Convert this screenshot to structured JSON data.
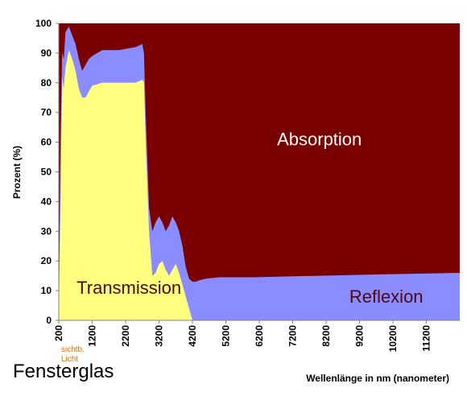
{
  "caption": "Fensterglas",
  "visible_light_label": [
    "sichtb.",
    "Licht"
  ],
  "colors": {
    "absorption": "#7a0000",
    "reflexion": "#8b8cff",
    "transmission": "#ffff80",
    "visible_light_label": "#e07000",
    "region_label_text": "#4a0a12"
  },
  "chart_data": {
    "type": "area",
    "title": "",
    "xlabel": "Wellenlänge in nm (nanometer)",
    "ylabel": "Prozent (%)",
    "xlim": [
      200,
      12200
    ],
    "ylim": [
      0,
      100
    ],
    "x_ticks": [
      200,
      1200,
      2200,
      3200,
      4200,
      5200,
      6200,
      7200,
      8200,
      9200,
      10200,
      11200
    ],
    "y_ticks": [
      0,
      10,
      20,
      30,
      40,
      50,
      60,
      70,
      80,
      90,
      100
    ],
    "region_labels": [
      {
        "series": "Absorption",
        "text": "Absorption",
        "x": 8000,
        "y": 59
      },
      {
        "series": "Reflexion",
        "text": "Reflexion",
        "x": 10000,
        "y": 6
      },
      {
        "series": "Transmission",
        "text": "Transmission",
        "x": 2300,
        "y": 9
      }
    ],
    "x": [
      200,
      250,
      300,
      350,
      400,
      500,
      600,
      700,
      800,
      900,
      1000,
      1100,
      1200,
      1500,
      2000,
      2500,
      2700,
      2750,
      2800,
      2900,
      3000,
      3100,
      3200,
      3300,
      3400,
      3500,
      3600,
      3700,
      3800,
      3900,
      4000,
      4100,
      4200,
      4300,
      4400,
      4600,
      5000,
      6000,
      8000,
      10000,
      12200
    ],
    "series": [
      {
        "name": "Transmission",
        "values": [
          0,
          40,
          82,
          78,
          85,
          91,
          88,
          84,
          78,
          75,
          75,
          77,
          79,
          80,
          80,
          80,
          81,
          80,
          60,
          30,
          15,
          16,
          19,
          20,
          17,
          15,
          17,
          19,
          16,
          12,
          8,
          4,
          0,
          0,
          0,
          0,
          0,
          0,
          0,
          0,
          0
        ]
      },
      {
        "name": "Reflexion",
        "values": [
          0,
          60,
          90,
          88,
          97,
          99,
          96,
          93,
          88,
          84,
          86,
          88,
          89,
          91,
          91,
          92,
          93,
          90,
          70,
          38,
          30,
          33,
          35,
          33,
          30,
          32,
          35,
          33,
          30,
          25,
          18,
          14,
          13,
          13,
          13.5,
          14,
          14.5,
          14.5,
          15,
          15.5,
          16
        ]
      }
    ]
  }
}
